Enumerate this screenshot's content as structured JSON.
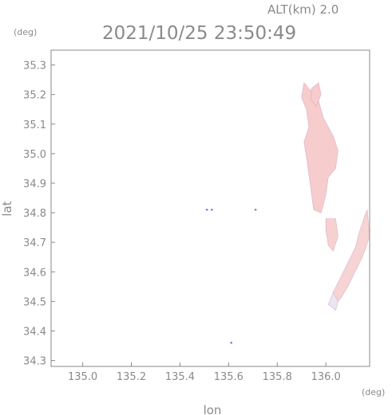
{
  "header": {
    "alt_label": "ALT(km)  2.0",
    "timestamp": "2021/10/25 23:50:49",
    "y_unit": "(deg)",
    "x_unit": "(deg)"
  },
  "chart_data": {
    "type": "heatmap",
    "xlabel": "lon",
    "ylabel": "lat",
    "xlim": [
      134.87,
      136.18
    ],
    "ylim": [
      34.28,
      35.35
    ],
    "x_ticks": [
      "135.0",
      "135.2",
      "135.4",
      "135.6",
      "135.8",
      "136.0"
    ],
    "x_tick_values": [
      135.0,
      135.2,
      135.4,
      135.6,
      135.8,
      136.0
    ],
    "y_ticks": [
      "34.3",
      "34.4",
      "34.5",
      "34.6",
      "34.7",
      "34.8",
      "34.9",
      "35.0",
      "35.1",
      "35.2",
      "35.3"
    ],
    "y_tick_values": [
      34.3,
      34.4,
      34.5,
      34.6,
      34.7,
      34.8,
      34.9,
      35.0,
      35.1,
      35.2,
      35.3
    ],
    "regions": [
      {
        "name": "north-arm",
        "color": "#f6cccc",
        "points": [
          [
            135.91,
            35.24
          ],
          [
            135.97,
            35.18
          ],
          [
            135.99,
            35.12
          ],
          [
            136.03,
            35.06
          ],
          [
            136.05,
            35.01
          ],
          [
            136.04,
            34.95
          ],
          [
            136.01,
            34.92
          ],
          [
            136.0,
            34.86
          ],
          [
            135.98,
            34.8
          ],
          [
            135.95,
            34.81
          ],
          [
            135.94,
            34.87
          ],
          [
            135.93,
            34.93
          ],
          [
            135.92,
            34.99
          ],
          [
            135.91,
            35.04
          ],
          [
            135.93,
            35.09
          ],
          [
            135.92,
            35.15
          ],
          [
            135.9,
            35.19
          ]
        ]
      },
      {
        "name": "north-blob",
        "color": "#f6cccc",
        "points": [
          [
            135.94,
            35.22
          ],
          [
            135.97,
            35.24
          ],
          [
            135.98,
            35.2
          ],
          [
            135.96,
            35.16
          ],
          [
            135.94,
            35.18
          ]
        ]
      },
      {
        "name": "mid-patch",
        "color": "#f7d0d0",
        "points": [
          [
            136.0,
            34.78
          ],
          [
            136.04,
            34.78
          ],
          [
            136.05,
            34.72
          ],
          [
            136.03,
            34.67
          ],
          [
            136.01,
            34.69
          ],
          [
            136.0,
            34.74
          ]
        ]
      },
      {
        "name": "south-strip",
        "color": "#f7d4d4",
        "points": [
          [
            136.17,
            34.81
          ],
          [
            136.18,
            34.72
          ],
          [
            136.15,
            34.65
          ],
          [
            136.12,
            34.6
          ],
          [
            136.09,
            34.55
          ],
          [
            136.06,
            34.51
          ],
          [
            136.04,
            34.49
          ],
          [
            136.03,
            34.53
          ],
          [
            136.06,
            34.58
          ],
          [
            136.09,
            34.63
          ],
          [
            136.12,
            34.68
          ],
          [
            136.14,
            34.74
          ],
          [
            136.16,
            34.79
          ]
        ]
      },
      {
        "name": "south-tail",
        "color": "#ebe6f4",
        "points": [
          [
            136.03,
            34.53
          ],
          [
            136.05,
            34.5
          ],
          [
            136.04,
            34.47
          ],
          [
            136.01,
            34.49
          ]
        ]
      }
    ],
    "specks": [
      {
        "x": 135.51,
        "y": 34.81,
        "color": "#6a6ae0"
      },
      {
        "x": 135.53,
        "y": 34.81,
        "color": "#6a6ae0"
      },
      {
        "x": 135.71,
        "y": 34.81,
        "color": "#6a6ae0"
      },
      {
        "x": 135.61,
        "y": 34.36,
        "color": "#6a6ae0"
      }
    ]
  }
}
